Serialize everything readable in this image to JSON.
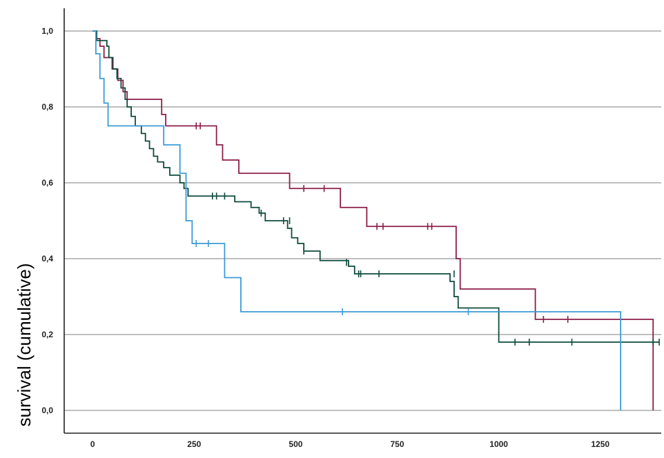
{
  "chart_data": {
    "type": "line",
    "title": "",
    "xlabel": "",
    "ylabel": "survival (cumulative)",
    "xlim": [
      -70,
      1400
    ],
    "ylim": [
      -0.06,
      1.06
    ],
    "grid": true,
    "x_ticks": [
      {
        "value": 0,
        "label": "0"
      },
      {
        "value": 250,
        "label": "250"
      },
      {
        "value": 500,
        "label": "500"
      },
      {
        "value": 750,
        "label": "750"
      },
      {
        "value": 1000,
        "label": "1000"
      },
      {
        "value": 1250,
        "label": "1250"
      }
    ],
    "y_ticks": [
      {
        "value": 0.0,
        "label": "0,0"
      },
      {
        "value": 0.2,
        "label": "0,2"
      },
      {
        "value": 0.4,
        "label": "0,4"
      },
      {
        "value": 0.6,
        "label": "0,6"
      },
      {
        "value": 0.8,
        "label": "0,8"
      },
      {
        "value": 1.0,
        "label": "1,0"
      }
    ],
    "series": [
      {
        "color": "#8b1d47",
        "steps": [
          [
            0,
            1.0
          ],
          [
            8,
            0.98
          ],
          [
            18,
            0.96
          ],
          [
            28,
            0.93
          ],
          [
            48,
            0.9
          ],
          [
            62,
            0.87
          ],
          [
            75,
            0.84
          ],
          [
            85,
            0.82
          ],
          [
            170,
            0.78
          ],
          [
            180,
            0.75
          ],
          [
            305,
            0.7
          ],
          [
            320,
            0.66
          ],
          [
            360,
            0.625
          ],
          [
            485,
            0.585
          ],
          [
            610,
            0.535
          ],
          [
            675,
            0.485
          ],
          [
            895,
            0.4
          ],
          [
            905,
            0.32
          ],
          [
            1090,
            0.24
          ],
          [
            1380,
            0.24
          ],
          [
            1380,
            0.0
          ]
        ],
        "censored": [
          [
            255,
            0.75
          ],
          [
            265,
            0.75
          ],
          [
            520,
            0.585
          ],
          [
            570,
            0.585
          ],
          [
            700,
            0.485
          ],
          [
            715,
            0.485
          ],
          [
            825,
            0.485
          ],
          [
            835,
            0.485
          ],
          [
            1110,
            0.24
          ],
          [
            1170,
            0.24
          ]
        ]
      },
      {
        "color": "#0d4a3c",
        "steps": [
          [
            0,
            1.0
          ],
          [
            10,
            0.975
          ],
          [
            35,
            0.96
          ],
          [
            40,
            0.93
          ],
          [
            50,
            0.9
          ],
          [
            60,
            0.875
          ],
          [
            70,
            0.85
          ],
          [
            80,
            0.82
          ],
          [
            85,
            0.8
          ],
          [
            95,
            0.775
          ],
          [
            105,
            0.75
          ],
          [
            120,
            0.73
          ],
          [
            130,
            0.71
          ],
          [
            140,
            0.69
          ],
          [
            150,
            0.67
          ],
          [
            160,
            0.655
          ],
          [
            175,
            0.64
          ],
          [
            190,
            0.62
          ],
          [
            215,
            0.6
          ],
          [
            225,
            0.585
          ],
          [
            235,
            0.565
          ],
          [
            350,
            0.55
          ],
          [
            390,
            0.535
          ],
          [
            410,
            0.52
          ],
          [
            425,
            0.5
          ],
          [
            480,
            0.48
          ],
          [
            490,
            0.455
          ],
          [
            505,
            0.44
          ],
          [
            520,
            0.42
          ],
          [
            560,
            0.395
          ],
          [
            630,
            0.38
          ],
          [
            645,
            0.36
          ],
          [
            880,
            0.34
          ],
          [
            890,
            0.3
          ],
          [
            900,
            0.27
          ],
          [
            1000,
            0.18
          ],
          [
            1395,
            0.18
          ]
        ],
        "censored": [
          [
            295,
            0.565
          ],
          [
            305,
            0.565
          ],
          [
            325,
            0.565
          ],
          [
            415,
            0.52
          ],
          [
            470,
            0.5
          ],
          [
            485,
            0.5
          ],
          [
            520,
            0.42
          ],
          [
            625,
            0.39
          ],
          [
            655,
            0.36
          ],
          [
            660,
            0.36
          ],
          [
            705,
            0.36
          ],
          [
            890,
            0.36
          ],
          [
            1040,
            0.18
          ],
          [
            1075,
            0.18
          ],
          [
            1180,
            0.18
          ],
          [
            1380,
            0.18
          ],
          [
            1395,
            0.18
          ]
        ]
      },
      {
        "color": "#3a9bd6",
        "steps": [
          [
            0,
            1.0
          ],
          [
            8,
            0.94
          ],
          [
            18,
            0.875
          ],
          [
            28,
            0.81
          ],
          [
            38,
            0.75
          ],
          [
            175,
            0.7
          ],
          [
            215,
            0.625
          ],
          [
            230,
            0.5
          ],
          [
            245,
            0.44
          ],
          [
            325,
            0.35
          ],
          [
            365,
            0.26
          ],
          [
            1300,
            0.26
          ],
          [
            1300,
            0.0
          ]
        ],
        "censored": [
          [
            255,
            0.44
          ],
          [
            285,
            0.44
          ],
          [
            615,
            0.26
          ],
          [
            925,
            0.26
          ]
        ]
      }
    ]
  }
}
